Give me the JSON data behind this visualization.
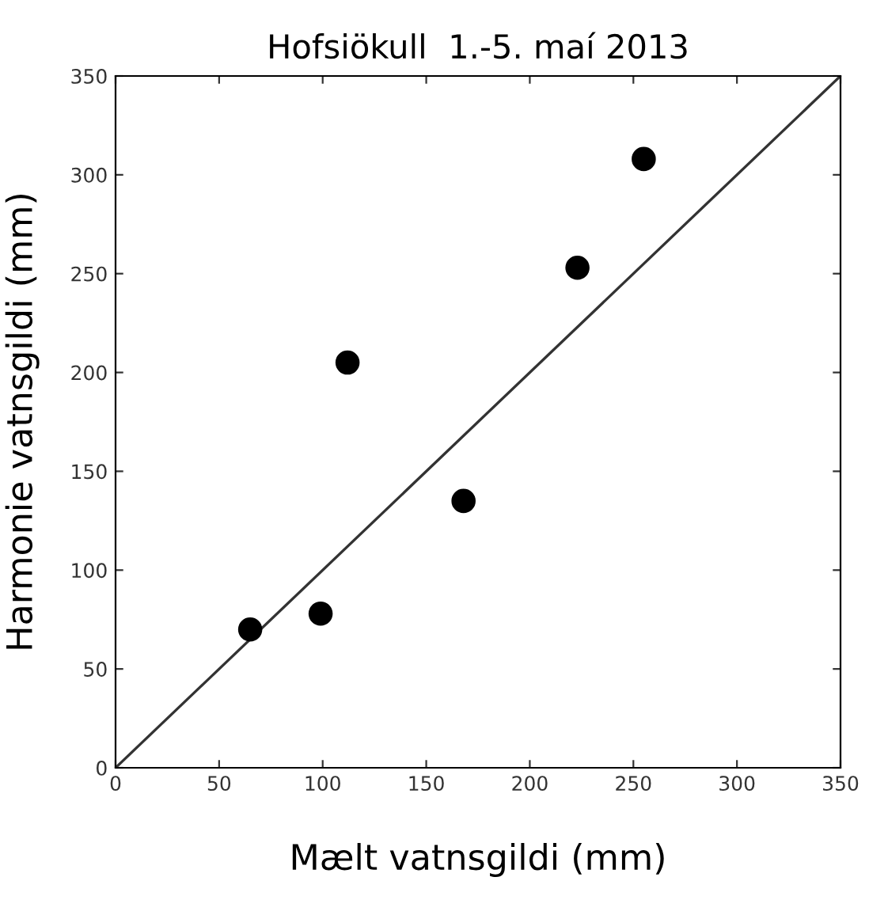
{
  "chart_data": {
    "type": "scatter",
    "title": "Hofsiökull  1.-5. maí 2013",
    "xlabel": "Mælt vatnsgildi (mm)",
    "ylabel": "Harmonie vatnsgildi (mm)",
    "xlim": [
      0,
      350
    ],
    "ylim": [
      0,
      350
    ],
    "xticks": [
      0,
      50,
      100,
      150,
      200,
      250,
      300,
      350
    ],
    "yticks": [
      0,
      50,
      100,
      150,
      200,
      250,
      300,
      350
    ],
    "grid": false,
    "legend": false,
    "marker": "circle",
    "series": [
      {
        "color": "#000000",
        "x": [
          65,
          99,
          112,
          168,
          223,
          255
        ],
        "values": [
          70,
          78,
          205,
          135,
          253,
          308
        ]
      },
      {
        "type": "line",
        "color": "#333333",
        "marker": "none",
        "line_style": "solid",
        "x": [
          0,
          350
        ],
        "values": [
          0,
          350
        ]
      }
    ]
  }
}
